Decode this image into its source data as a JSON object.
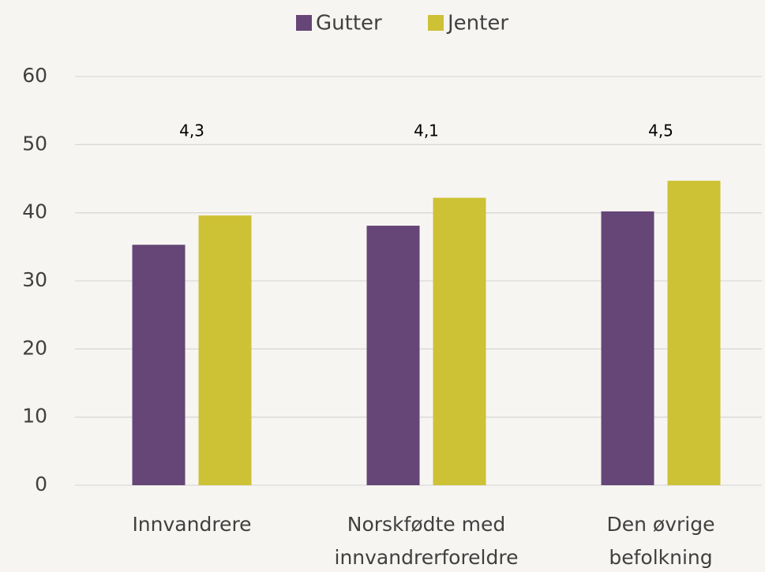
{
  "chart_data": {
    "type": "bar",
    "categories": [
      [
        "Innvandrere"
      ],
      [
        "Norskfødte med",
        "innvandrerforeldre"
      ],
      [
        "Den øvrige",
        "befolkning"
      ]
    ],
    "series": [
      {
        "name": "Gutter",
        "color": "#654677",
        "values": [
          35.3,
          38.1,
          40.2
        ]
      },
      {
        "name": "Jenter",
        "color": "#cdc135",
        "values": [
          39.6,
          42.2,
          44.7
        ]
      }
    ],
    "annotations": [
      "4,3",
      "4,1",
      "4,5"
    ],
    "ylim": [
      0,
      60
    ],
    "yticks": [
      0,
      10,
      20,
      30,
      40,
      50,
      60
    ],
    "grid": true,
    "legend": "top"
  }
}
